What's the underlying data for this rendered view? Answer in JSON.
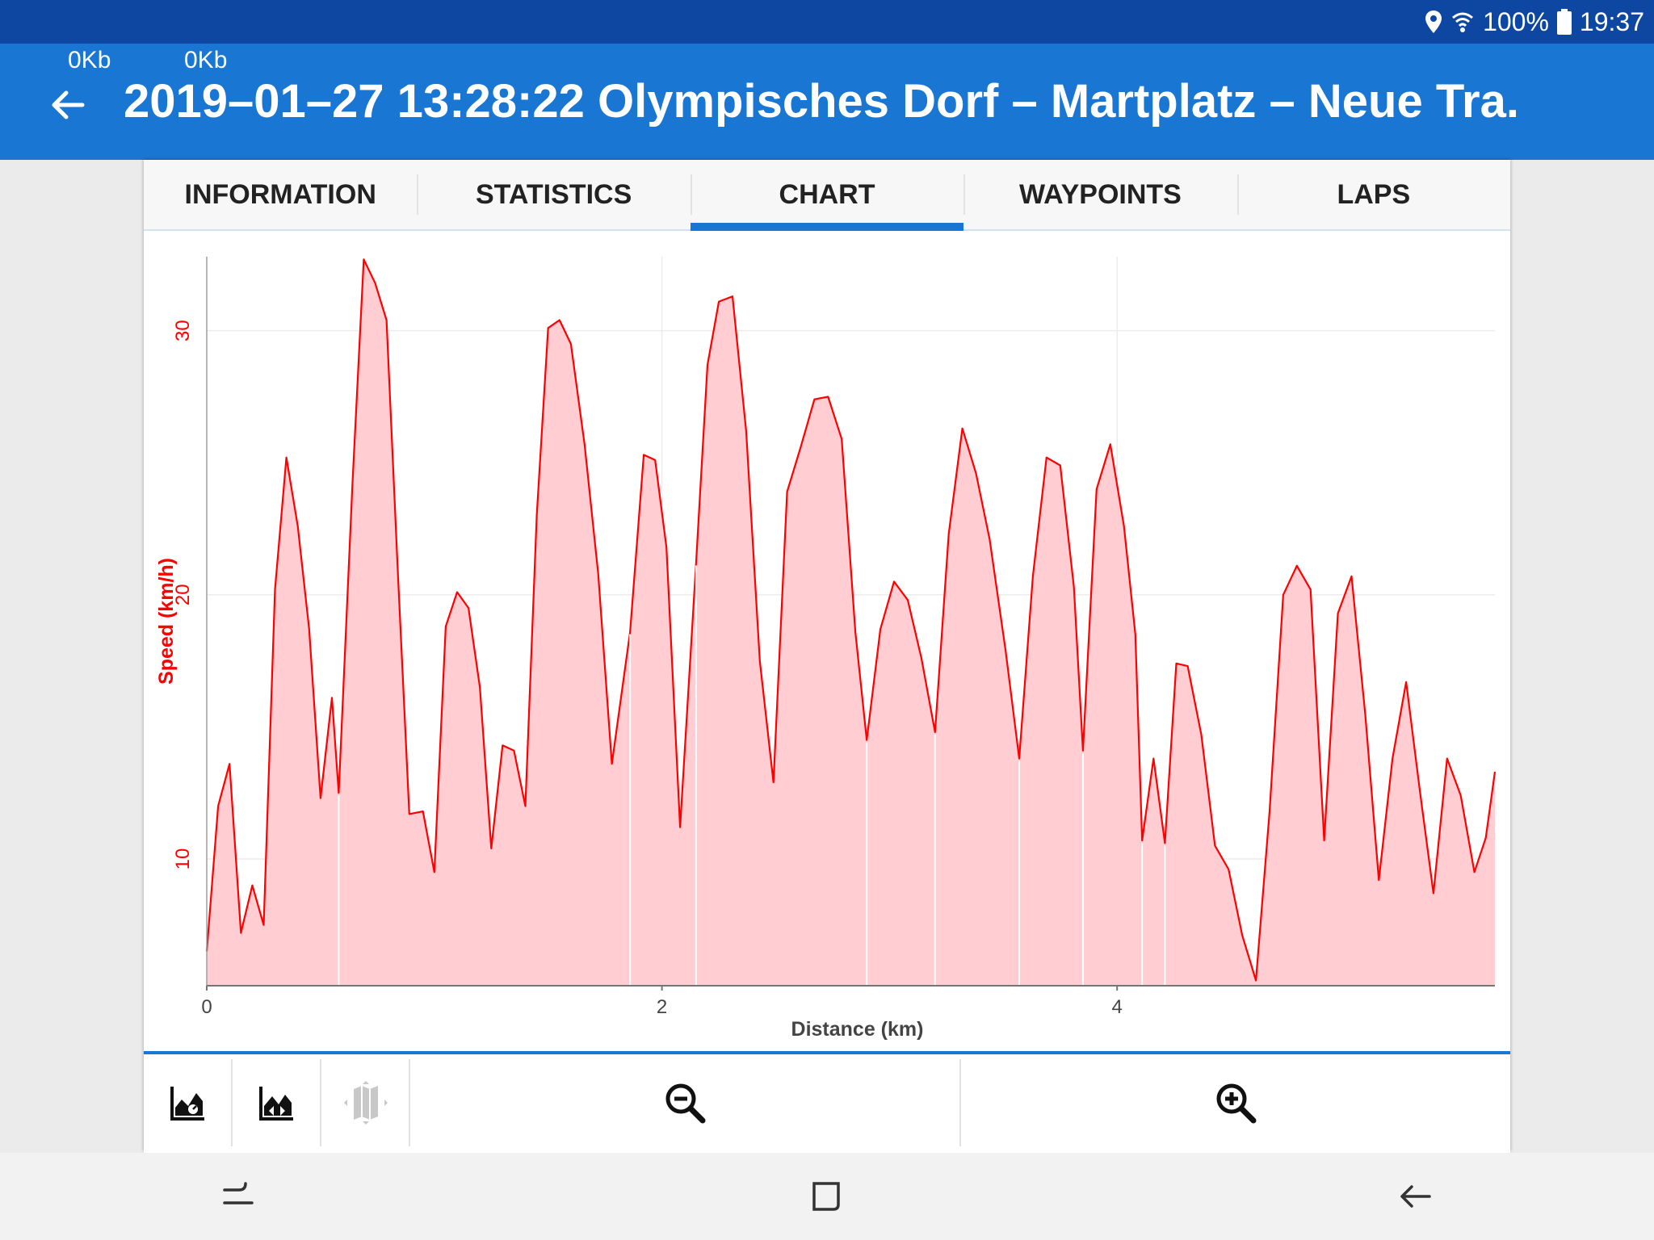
{
  "status_bar": {
    "battery": "100%",
    "time": "19:37",
    "icons": [
      "location-icon",
      "wifi-icon",
      "battery-icon"
    ]
  },
  "app_bar": {
    "download_speed": "0Kb",
    "upload_speed": "0Kb",
    "title": "2019–01–27 13:28:22 Olympisches Dorf – Martplatz – Neue Tra."
  },
  "tabs": [
    {
      "label": "INFORMATION",
      "active": false
    },
    {
      "label": "STATISTICS",
      "active": false
    },
    {
      "label": "CHART",
      "active": true
    },
    {
      "label": "WAYPOINTS",
      "active": false
    },
    {
      "label": "LAPS",
      "active": false
    }
  ],
  "toolbar": {
    "icons": [
      "chart-speed-icon",
      "chart-elevation-icon",
      "map-icon",
      "zoom-out-icon",
      "zoom-in-icon"
    ]
  },
  "nav_bar": {
    "icons": [
      "recent-apps-icon",
      "home-icon",
      "back-icon"
    ]
  },
  "colors": {
    "status_bar": "#0d47a1",
    "app_bar": "#1976d2",
    "series_line": "#ff0000",
    "series_fill": "#ffcdd2",
    "accent": "#1976d2"
  },
  "chart_data": {
    "type": "area",
    "xlabel": "Distance (km)",
    "ylabel": "Speed (km/h)",
    "xlim": [
      0,
      5.66
    ],
    "ylim": [
      5.2,
      32.8
    ],
    "xticks": [
      0,
      2,
      4
    ],
    "yticks": [
      10,
      20,
      30
    ],
    "grid": true,
    "segment_breaks_km": [
      0.58,
      1.86,
      2.15,
      2.9,
      3.2,
      3.57,
      3.85,
      4.11,
      4.21
    ],
    "series": [
      {
        "name": "Speed",
        "x": [
          0.0,
          0.05,
          0.1,
          0.15,
          0.2,
          0.25,
          0.3,
          0.35,
          0.4,
          0.45,
          0.5,
          0.55,
          0.58,
          0.64,
          0.69,
          0.74,
          0.79,
          0.84,
          0.89,
          0.95,
          1.0,
          1.05,
          1.1,
          1.15,
          1.2,
          1.25,
          1.3,
          1.35,
          1.4,
          1.45,
          1.5,
          1.55,
          1.6,
          1.66,
          1.72,
          1.78,
          1.86,
          1.92,
          1.97,
          2.02,
          2.08,
          2.15,
          2.2,
          2.25,
          2.31,
          2.37,
          2.43,
          2.49,
          2.55,
          2.61,
          2.67,
          2.73,
          2.79,
          2.85,
          2.9,
          2.96,
          3.02,
          3.08,
          3.14,
          3.2,
          3.26,
          3.32,
          3.38,
          3.44,
          3.51,
          3.57,
          3.63,
          3.69,
          3.75,
          3.81,
          3.85,
          3.91,
          3.97,
          4.03,
          4.08,
          4.11,
          4.16,
          4.21,
          4.26,
          4.31,
          4.37,
          4.43,
          4.49,
          4.55,
          4.61,
          4.67,
          4.73,
          4.79,
          4.85,
          4.91,
          4.97,
          5.03,
          5.09,
          5.15,
          5.21,
          5.27,
          5.33,
          5.39,
          5.45,
          5.51,
          5.57,
          5.62,
          5.66
        ],
        "y": [
          6.5,
          12.0,
          13.6,
          7.2,
          9.0,
          7.5,
          20.2,
          25.2,
          22.6,
          18.7,
          12.3,
          16.1,
          12.5,
          24.2,
          32.7,
          31.8,
          30.4,
          20.8,
          11.7,
          11.8,
          9.5,
          18.8,
          20.1,
          19.5,
          16.5,
          10.4,
          14.3,
          14.1,
          12.0,
          23.0,
          30.1,
          30.4,
          29.5,
          25.7,
          20.8,
          13.6,
          18.6,
          25.3,
          25.1,
          21.8,
          11.2,
          21.2,
          28.7,
          31.1,
          31.3,
          26.2,
          17.5,
          12.9,
          23.9,
          25.6,
          27.4,
          27.5,
          25.9,
          18.6,
          14.5,
          18.7,
          20.5,
          19.8,
          17.6,
          14.8,
          22.3,
          26.3,
          24.6,
          22.1,
          17.9,
          13.8,
          20.7,
          25.2,
          24.9,
          20.3,
          14.1,
          24.0,
          25.7,
          22.6,
          18.5,
          10.7,
          13.8,
          10.6,
          17.4,
          17.3,
          14.7,
          10.5,
          9.6,
          7.1,
          5.4,
          11.8,
          20.0,
          21.1,
          20.2,
          10.7,
          19.3,
          20.7,
          15.5,
          9.2,
          13.8,
          16.7,
          12.6,
          8.7,
          13.8,
          12.4,
          9.5,
          10.8,
          13.3
        ]
      }
    ]
  }
}
